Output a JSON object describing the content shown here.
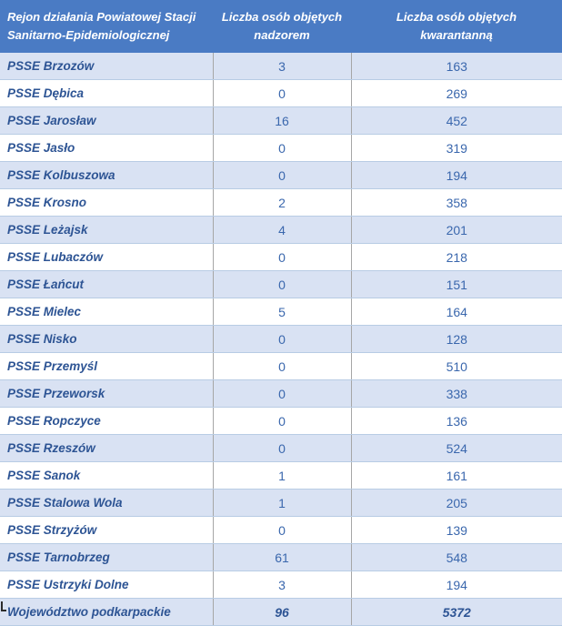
{
  "table": {
    "header": {
      "region_line1": "Rejon działania Powiatowej Stacji",
      "region_line2": "Sanitarno-Epidemiologicznej",
      "nadzor_line1": "Liczba osób objętych",
      "nadzor_line2": "nadzorem",
      "kwarantanna_line1": "Liczba osób objętych",
      "kwarantanna_line2": "kwarantanną"
    },
    "rows": [
      {
        "region": "PSSE Brzozów",
        "nadzorem": "3",
        "kwarantanna": "163"
      },
      {
        "region": "PSSE Dębica",
        "nadzorem": "0",
        "kwarantanna": "269"
      },
      {
        "region": "PSSE Jarosław",
        "nadzorem": "16",
        "kwarantanna": "452"
      },
      {
        "region": "PSSE Jasło",
        "nadzorem": "0",
        "kwarantanna": "319"
      },
      {
        "region": "PSSE Kolbuszowa",
        "nadzorem": "0",
        "kwarantanna": "194"
      },
      {
        "region": "PSSE Krosno",
        "nadzorem": "2",
        "kwarantanna": "358"
      },
      {
        "region": "PSSE Leżajsk",
        "nadzorem": "4",
        "kwarantanna": "201"
      },
      {
        "region": "PSSE Lubaczów",
        "nadzorem": "0",
        "kwarantanna": "218"
      },
      {
        "region": "PSSE Łańcut",
        "nadzorem": "0",
        "kwarantanna": "151"
      },
      {
        "region": "PSSE Mielec",
        "nadzorem": "5",
        "kwarantanna": "164"
      },
      {
        "region": "PSSE Nisko",
        "nadzorem": "0",
        "kwarantanna": "128"
      },
      {
        "region": "PSSE Przemyśl",
        "nadzorem": "0",
        "kwarantanna": "510"
      },
      {
        "region": "PSSE Przeworsk",
        "nadzorem": "0",
        "kwarantanna": "338"
      },
      {
        "region": "PSSE Ropczyce",
        "nadzorem": "0",
        "kwarantanna": "136"
      },
      {
        "region": "PSSE Rzeszów",
        "nadzorem": "0",
        "kwarantanna": "524"
      },
      {
        "region": "PSSE Sanok",
        "nadzorem": "1",
        "kwarantanna": "161"
      },
      {
        "region": "PSSE Stalowa Wola",
        "nadzorem": "1",
        "kwarantanna": "205"
      },
      {
        "region": "PSSE Strzyżów",
        "nadzorem": "0",
        "kwarantanna": "139"
      },
      {
        "region": "PSSE Tarnobrzeg",
        "nadzorem": "61",
        "kwarantanna": "548"
      },
      {
        "region": "PSSE Ustrzyki Dolne",
        "nadzorem": "3",
        "kwarantanna": "194"
      }
    ],
    "total_row": {
      "region": "Województwo podkarpackie",
      "nadzorem": "96",
      "kwarantanna": "5372"
    }
  },
  "colors": {
    "header_bg": "#4a7bc4",
    "header_text": "#ffffff",
    "band_bg": "#d9e2f3",
    "plain_bg": "#ffffff",
    "region_text": "#2d5494",
    "number_text": "#3a67ad",
    "row_border": "#b8cce4",
    "column_divider": "#a6a6a6"
  }
}
